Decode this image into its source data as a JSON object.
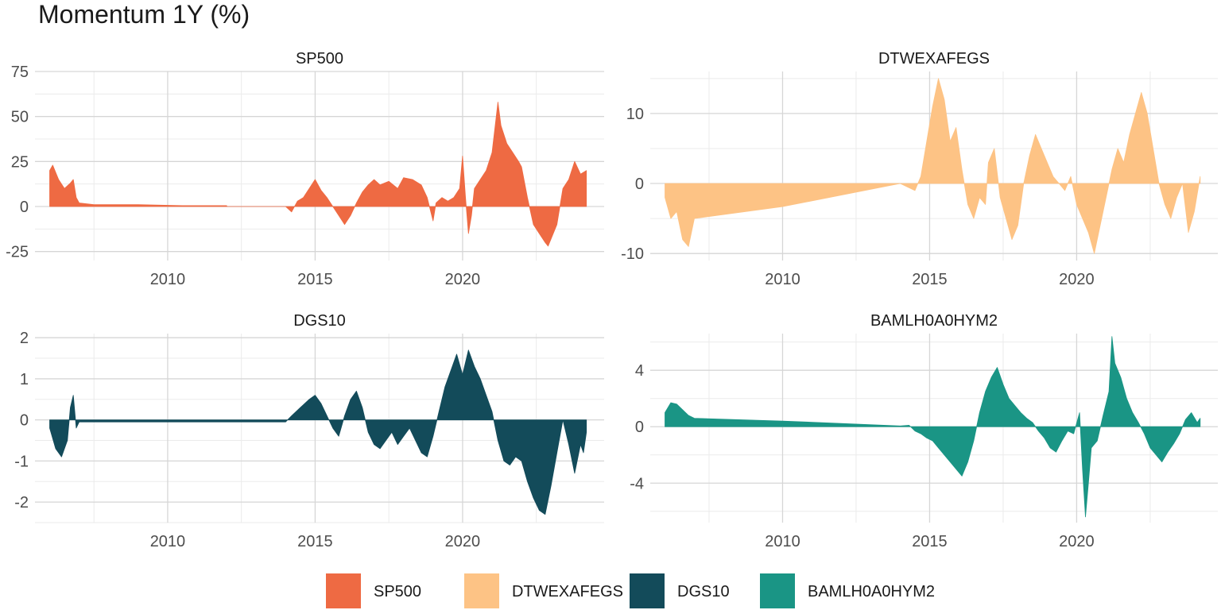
{
  "chart_data": {
    "type": "area",
    "title": "Momentum 1Y (%)",
    "legend": {
      "position": "bottom",
      "entries": [
        {
          "name": "SP500",
          "color": "#EE6A43"
        },
        {
          "name": "DTWEXAFEGS",
          "color": "#FDC385"
        },
        {
          "name": "DGS10",
          "color": "#134B5A"
        },
        {
          "name": "BAMLH0A0HYM2",
          "color": "#1A9585"
        }
      ]
    },
    "grid": true,
    "x_range": [
      2005.5,
      2024.8
    ],
    "x_ticks": [
      2010,
      2015,
      2020
    ],
    "panels": [
      {
        "name": "SP500",
        "color": "#EE6A43",
        "ylim": [
          -30,
          75
        ],
        "y_ticks": [
          -25,
          0,
          25,
          50,
          75
        ],
        "x_tick_labels": [
          "2010",
          "2015",
          "2020"
        ],
        "y_tick_labels": [
          "-25",
          "0",
          "25",
          "50",
          "75"
        ],
        "x": [
          2006.0,
          2006.1,
          2006.3,
          2006.5,
          2006.7,
          2006.8,
          2006.9,
          2007.0,
          2007.5,
          2009.0,
          2010.5,
          2012.0,
          2012.01,
          2014.0,
          2014.2,
          2014.4,
          2014.6,
          2014.8,
          2015.0,
          2015.2,
          2015.4,
          2015.6,
          2015.8,
          2016.0,
          2016.2,
          2016.4,
          2016.6,
          2016.8,
          2017.0,
          2017.2,
          2017.5,
          2017.8,
          2018.0,
          2018.3,
          2018.6,
          2018.8,
          2019.0,
          2019.1,
          2019.3,
          2019.5,
          2019.7,
          2019.9,
          2020.0,
          2020.1,
          2020.2,
          2020.3,
          2020.4,
          2020.6,
          2020.8,
          2021.0,
          2021.2,
          2021.3,
          2021.5,
          2021.7,
          2021.9,
          2022.0,
          2022.2,
          2022.4,
          2022.6,
          2022.8,
          2022.9,
          2023.0,
          2023.2,
          2023.4,
          2023.6,
          2023.8,
          2024.0,
          2024.2
        ],
        "y": [
          20,
          23,
          15,
          10,
          13,
          15,
          5,
          2,
          1,
          1,
          0.5,
          0.5,
          0,
          0,
          -3,
          3,
          5,
          10,
          15,
          9,
          5,
          0,
          -5,
          -10,
          -5,
          2,
          8,
          12,
          15,
          12,
          14,
          10,
          16,
          15,
          12,
          5,
          -8,
          2,
          5,
          3,
          5,
          10,
          28,
          5,
          -15,
          -5,
          10,
          15,
          20,
          30,
          58,
          45,
          35,
          30,
          25,
          22,
          5,
          -10,
          -15,
          -20,
          -22,
          -18,
          -10,
          10,
          15,
          25,
          18,
          20
        ]
      },
      {
        "name": "DTWEXAFEGS",
        "color": "#FDC385",
        "ylim": [
          -11,
          16
        ],
        "y_ticks": [
          -10,
          0,
          10
        ],
        "x_tick_labels": [
          "2010",
          "2015",
          "2020"
        ],
        "y_tick_labels": [
          "-10",
          "0",
          "10"
        ],
        "x": [
          2006.0,
          2006.2,
          2006.4,
          2006.6,
          2006.8,
          2007.0,
          2010.0,
          2014.0,
          2014.5,
          2014.7,
          2014.9,
          2015.1,
          2015.3,
          2015.5,
          2015.7,
          2015.9,
          2016.1,
          2016.3,
          2016.5,
          2016.7,
          2016.9,
          2017.0,
          2017.2,
          2017.4,
          2017.6,
          2017.8,
          2018.0,
          2018.2,
          2018.4,
          2018.6,
          2018.8,
          2019.0,
          2019.2,
          2019.4,
          2019.6,
          2019.8,
          2020.0,
          2020.2,
          2020.4,
          2020.6,
          2020.8,
          2021.0,
          2021.2,
          2021.4,
          2021.6,
          2021.8,
          2022.0,
          2022.2,
          2022.4,
          2022.6,
          2022.8,
          2023.0,
          2023.2,
          2023.4,
          2023.6,
          2023.8,
          2024.0,
          2024.2
        ],
        "y": [
          -2,
          -5,
          -4,
          -8,
          -9,
          -5,
          -3.3,
          0,
          -1,
          1,
          6,
          11,
          15,
          12,
          6,
          8,
          2,
          -3,
          -5,
          -2,
          -3,
          3,
          5,
          -2,
          -5,
          -8,
          -6,
          0,
          4,
          7,
          5,
          3,
          1,
          0,
          -1,
          1,
          -3,
          -5,
          -7,
          -10,
          -6,
          -2,
          2,
          5,
          3,
          7,
          10,
          13,
          10,
          5,
          0,
          -3,
          -5,
          -2,
          0,
          -7,
          -4,
          1
        ]
      },
      {
        "name": "DGS10",
        "color": "#134B5A",
        "ylim": [
          -2.5,
          2.1
        ],
        "y_ticks": [
          -2,
          -1,
          0,
          1,
          2
        ],
        "x_tick_labels": [
          "2010",
          "2015",
          "2020"
        ],
        "y_tick_labels": [
          "-2",
          "-1",
          "0",
          "1",
          "2"
        ],
        "x": [
          2006.0,
          2006.2,
          2006.4,
          2006.6,
          2006.7,
          2006.8,
          2006.9,
          2007.0,
          2010.0,
          2014.0,
          2014.2,
          2014.5,
          2014.8,
          2015.0,
          2015.2,
          2015.4,
          2015.6,
          2015.8,
          2016.0,
          2016.2,
          2016.4,
          2016.6,
          2016.8,
          2017.0,
          2017.2,
          2017.4,
          2017.6,
          2017.8,
          2018.0,
          2018.2,
          2018.4,
          2018.6,
          2018.8,
          2019.0,
          2019.2,
          2019.4,
          2019.6,
          2019.8,
          2020.0,
          2020.2,
          2020.4,
          2020.6,
          2020.8,
          2021.0,
          2021.2,
          2021.4,
          2021.6,
          2021.8,
          2022.0,
          2022.2,
          2022.4,
          2022.6,
          2022.8,
          2023.0,
          2023.2,
          2023.4,
          2023.6,
          2023.8,
          2024.0,
          2024.1,
          2024.2
        ],
        "y": [
          -0.2,
          -0.7,
          -0.9,
          -0.5,
          0.3,
          0.6,
          -0.2,
          -0.05,
          -0.05,
          -0.05,
          0.1,
          0.3,
          0.5,
          0.6,
          0.4,
          0.1,
          -0.2,
          -0.4,
          0.1,
          0.5,
          0.7,
          0.3,
          -0.3,
          -0.6,
          -0.7,
          -0.5,
          -0.3,
          -0.6,
          -0.4,
          -0.2,
          -0.5,
          -0.8,
          -0.9,
          -0.4,
          0.2,
          0.8,
          1.2,
          1.6,
          1.1,
          1.7,
          1.3,
          1.0,
          0.6,
          0.2,
          -0.5,
          -1.0,
          -1.1,
          -0.9,
          -1.0,
          -1.5,
          -1.9,
          -2.2,
          -2.3,
          -1.6,
          -0.8,
          0.0,
          -0.6,
          -1.3,
          -0.6,
          -0.8,
          -0.3
        ]
      },
      {
        "name": "BAMLH0A0HYM2",
        "color": "#1A9585",
        "ylim": [
          -6.8,
          6.6
        ],
        "y_ticks": [
          -4,
          0,
          4
        ],
        "x_tick_labels": [
          "2010",
          "2015",
          "2020"
        ],
        "y_tick_labels": [
          "-4",
          "0",
          "4"
        ],
        "x": [
          2006.0,
          2006.2,
          2006.4,
          2006.6,
          2006.8,
          2007.0,
          2010.0,
          2014.0,
          2014.3,
          2014.5,
          2014.7,
          2014.9,
          2015.1,
          2015.3,
          2015.5,
          2015.7,
          2015.9,
          2016.1,
          2016.3,
          2016.5,
          2016.7,
          2016.9,
          2017.1,
          2017.3,
          2017.5,
          2017.7,
          2017.9,
          2018.1,
          2018.3,
          2018.5,
          2018.7,
          2018.9,
          2019.1,
          2019.3,
          2019.5,
          2019.7,
          2019.9,
          2020.1,
          2020.2,
          2020.3,
          2020.4,
          2020.5,
          2020.7,
          2020.9,
          2021.1,
          2021.2,
          2021.3,
          2021.5,
          2021.7,
          2021.9,
          2022.1,
          2022.3,
          2022.5,
          2022.7,
          2022.9,
          2023.1,
          2023.3,
          2023.5,
          2023.7,
          2023.9,
          2024.1,
          2024.2
        ],
        "y": [
          1.0,
          1.7,
          1.6,
          1.2,
          0.8,
          0.6,
          0.4,
          0.05,
          0.1,
          -0.3,
          -0.5,
          -0.8,
          -1.0,
          -1.5,
          -2.0,
          -2.5,
          -3.0,
          -3.5,
          -2.5,
          -1.0,
          1.0,
          2.5,
          3.5,
          4.2,
          3.0,
          2.0,
          1.5,
          1.0,
          0.6,
          0.3,
          -0.3,
          -0.8,
          -1.5,
          -1.8,
          -1.0,
          -0.3,
          -0.5,
          1.0,
          -3.0,
          -6.4,
          -4.0,
          -1.5,
          -1.0,
          0.8,
          2.5,
          6.4,
          4.5,
          3.5,
          2.0,
          1.0,
          0.3,
          -0.5,
          -1.5,
          -2.0,
          -2.5,
          -1.8,
          -1.2,
          -0.5,
          0.5,
          1.0,
          0.3,
          0.6
        ]
      }
    ]
  }
}
